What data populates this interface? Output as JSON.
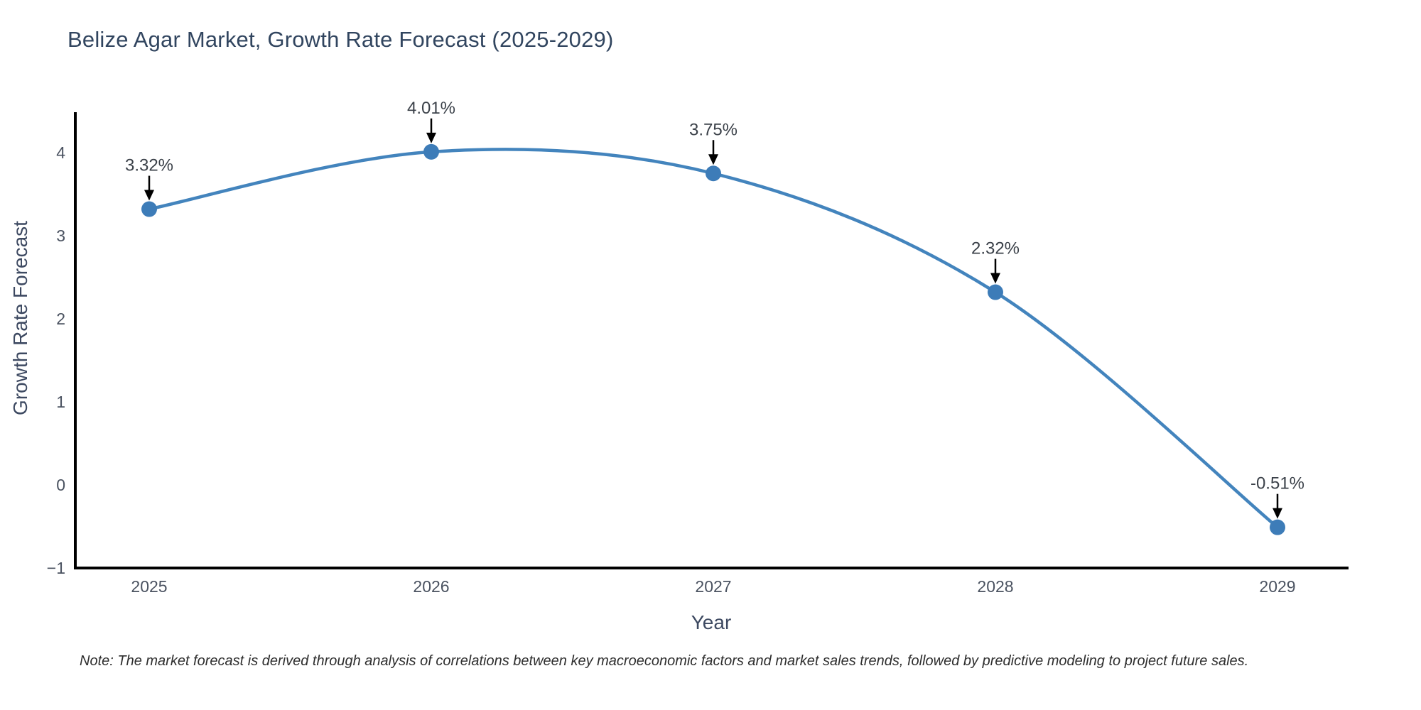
{
  "title": "Belize Agar Market, Growth Rate Forecast (2025-2029)",
  "note": "Note: The market forecast is derived through analysis of correlations between key macroeconomic factors and market sales trends, followed by predictive modeling to project future sales.",
  "chart_data": {
    "type": "line",
    "line_shape": "spline",
    "title": "Belize Agar Market, Growth Rate Forecast (2025-2029)",
    "xlabel": "Year",
    "ylabel": "Growth Rate Forecast",
    "x": [
      2025,
      2026,
      2027,
      2028,
      2029
    ],
    "categories": [
      "2025",
      "2026",
      "2027",
      "2028",
      "2029"
    ],
    "series": [
      {
        "name": "Growth Rate Forecast",
        "values": [
          3.32,
          4.01,
          3.75,
          2.32,
          -0.51
        ]
      }
    ],
    "point_labels": [
      "3.32%",
      "4.01%",
      "3.75%",
      "2.32%",
      "-0.51%"
    ],
    "annotation_style": "black-down-arrow",
    "yticks": [
      -1,
      0,
      1,
      2,
      3,
      4
    ],
    "ytick_labels": [
      "−1",
      "0",
      "1",
      "2",
      "3",
      "4"
    ],
    "ylim": [
      -1,
      4.47
    ],
    "grid": false,
    "legend": "none",
    "markers": true,
    "colors": {
      "line": "#4384bd",
      "marker": "#3d7cb8",
      "axis": "#000000",
      "annotation_arrow": "#000000",
      "tick_text": "#4a5260",
      "title_text": "#31455f"
    }
  }
}
